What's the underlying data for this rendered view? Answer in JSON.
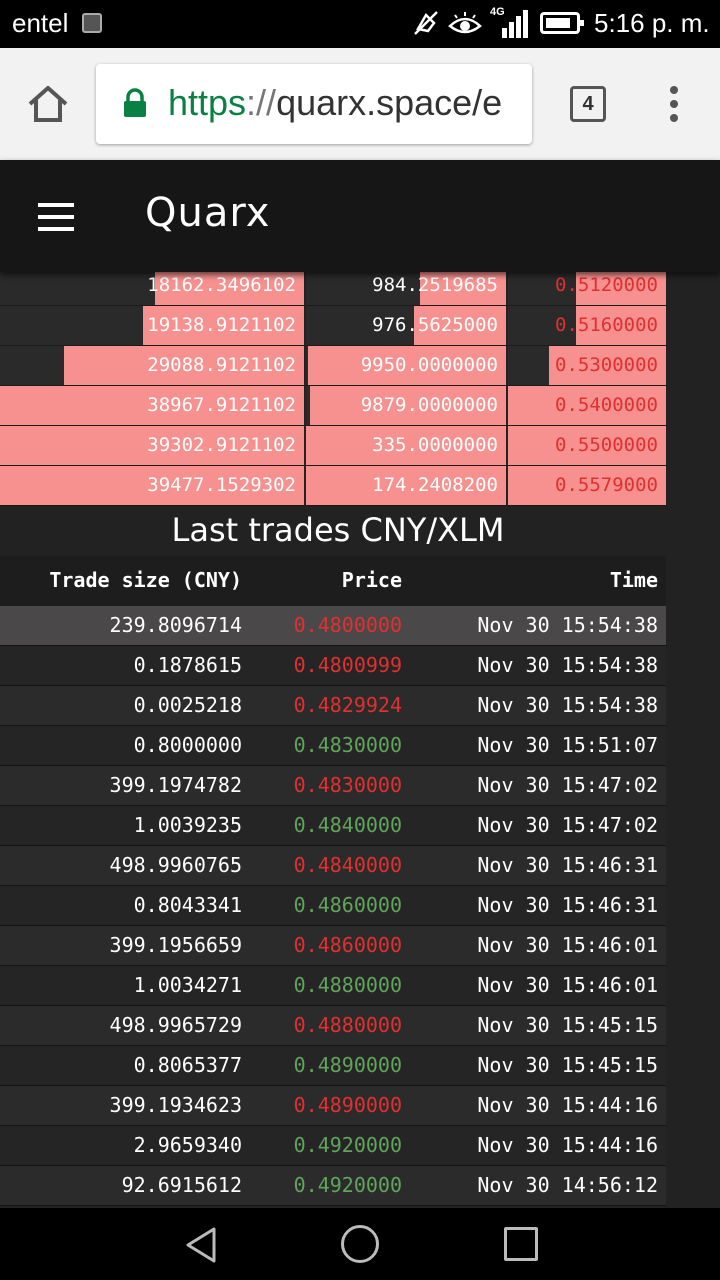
{
  "status_bar": {
    "carrier": "entel",
    "network": "4G",
    "time": "5:16 p. m."
  },
  "browser": {
    "url_scheme": "https",
    "url_separator": "://",
    "url_host": "quarx.space/e",
    "tab_count": "4"
  },
  "app": {
    "title": "Quarx"
  },
  "order_book": {
    "rows": [
      {
        "total": "18162.3496102",
        "total_fill": 0.49,
        "amount": "984.2519685",
        "amount_fill": 0.43,
        "price": "0.5120000",
        "price_fill": 0.57
      },
      {
        "total": "19138.9121102",
        "total_fill": 0.53,
        "amount": "976.5625000",
        "amount_fill": 0.46,
        "price": "0.5160000",
        "price_fill": 0.57
      },
      {
        "total": "29088.9121102",
        "total_fill": 0.79,
        "amount": "9950.0000000",
        "amount_fill": 0.99,
        "price": "0.5300000",
        "price_fill": 0.74
      },
      {
        "total": "38967.9121102",
        "total_fill": 1.0,
        "amount": "9879.0000000",
        "amount_fill": 0.98,
        "price": "0.5400000",
        "price_fill": 1.0
      },
      {
        "total": "39302.9121102",
        "total_fill": 1.0,
        "amount": "335.0000000",
        "amount_fill": 1.0,
        "price": "0.5500000",
        "price_fill": 1.0
      },
      {
        "total": "39477.1529302",
        "total_fill": 1.0,
        "amount": "174.2408200",
        "amount_fill": 1.0,
        "price": "0.5579000",
        "price_fill": 1.0
      }
    ]
  },
  "trades": {
    "title": "Last trades CNY/XLM",
    "headers": {
      "size": "Trade size (CNY)",
      "price": "Price",
      "time": "Time"
    },
    "rows": [
      {
        "size": "239.8096714",
        "price": "0.4800000",
        "dir": "down",
        "time": "Nov 30 15:54:38"
      },
      {
        "size": "0.1878615",
        "price": "0.4800999",
        "dir": "down",
        "time": "Nov 30 15:54:38"
      },
      {
        "size": "0.0025218",
        "price": "0.4829924",
        "dir": "down",
        "time": "Nov 30 15:54:38"
      },
      {
        "size": "0.8000000",
        "price": "0.4830000",
        "dir": "up",
        "time": "Nov 30 15:51:07"
      },
      {
        "size": "399.1974782",
        "price": "0.4830000",
        "dir": "down",
        "time": "Nov 30 15:47:02"
      },
      {
        "size": "1.0039235",
        "price": "0.4840000",
        "dir": "up",
        "time": "Nov 30 15:47:02"
      },
      {
        "size": "498.9960765",
        "price": "0.4840000",
        "dir": "down",
        "time": "Nov 30 15:46:31"
      },
      {
        "size": "0.8043341",
        "price": "0.4860000",
        "dir": "up",
        "time": "Nov 30 15:46:31"
      },
      {
        "size": "399.1956659",
        "price": "0.4860000",
        "dir": "down",
        "time": "Nov 30 15:46:01"
      },
      {
        "size": "1.0034271",
        "price": "0.4880000",
        "dir": "up",
        "time": "Nov 30 15:46:01"
      },
      {
        "size": "498.9965729",
        "price": "0.4880000",
        "dir": "down",
        "time": "Nov 30 15:45:15"
      },
      {
        "size": "0.8065377",
        "price": "0.4890000",
        "dir": "up",
        "time": "Nov 30 15:45:15"
      },
      {
        "size": "399.1934623",
        "price": "0.4890000",
        "dir": "down",
        "time": "Nov 30 15:44:16"
      },
      {
        "size": "2.9659340",
        "price": "0.4920000",
        "dir": "up",
        "time": "Nov 30 15:44:16"
      },
      {
        "size": "92.6915612",
        "price": "0.4920000",
        "dir": "up",
        "time": "Nov 30 14:56:12"
      }
    ]
  },
  "colors": {
    "bid_bar": "#f7918f",
    "price_up": "#5fa55a",
    "price_down": "#e03030",
    "url_secure": "#0b8043"
  }
}
